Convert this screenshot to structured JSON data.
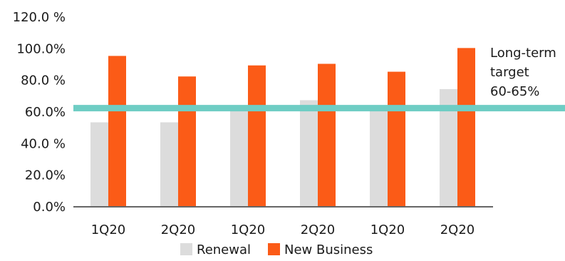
{
  "chart_data": {
    "type": "bar",
    "categories": [
      "1Q20",
      "2Q20",
      "1Q20",
      "2Q20",
      "1Q20",
      "2Q20"
    ],
    "series": [
      {
        "name": "Renewal",
        "values": [
          53,
          53,
          62,
          67,
          62,
          74
        ]
      },
      {
        "name": "New Business",
        "values": [
          95,
          82,
          89,
          90,
          85,
          100
        ]
      }
    ],
    "ylim": [
      0,
      120
    ],
    "yticks": [
      0,
      20,
      40,
      60,
      80,
      100,
      120
    ],
    "ytick_labels": [
      "0.0%",
      "20.0%",
      "40.0 %",
      "60.0%",
      "80.0 %",
      "100.0%",
      "120.0 %"
    ],
    "target_line": {
      "value": 62,
      "label_lines": [
        "Long-term",
        "target",
        "60-65%"
      ]
    },
    "legend_position": "bottom",
    "grid": false,
    "colors": {
      "renewal": "#dcdcdc",
      "new_business": "#fb5b17",
      "target_line": "#6ecdc4",
      "axis": "#333333"
    }
  }
}
